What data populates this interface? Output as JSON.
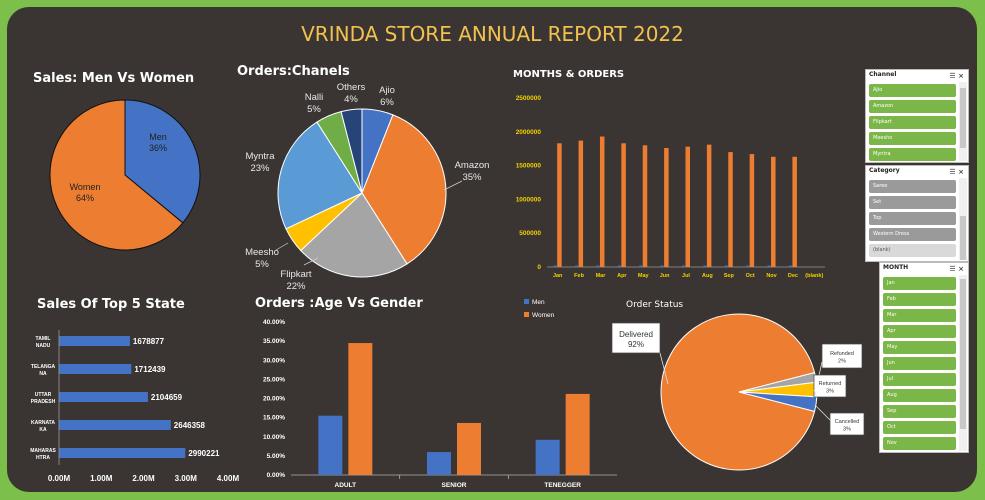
{
  "report_title": "VRINDA STORE ANNUAL REPORT 2022",
  "colors": {
    "blue": "#4472c4",
    "orange": "#ed7d31",
    "gray": "#a5a5a5",
    "yellow": "#ffc000",
    "lightblue": "#5b9bd5",
    "green": "#70ad47",
    "navy": "#264478",
    "gold": "#f2c14e",
    "slicer_green": "#7ab648"
  },
  "chart_data": [
    {
      "id": "gender",
      "type": "pie",
      "title": "Sales: Men Vs Women",
      "labels": [
        "Men",
        "Women"
      ],
      "values": [
        36,
        64
      ],
      "value_labels": [
        "36%",
        "64%"
      ]
    },
    {
      "id": "channels",
      "type": "pie",
      "title": "Orders:Chanels",
      "labels": [
        "Ajio",
        "Amazon",
        "Flipkart",
        "Meesho",
        "Myntra",
        "Nalli",
        "Others"
      ],
      "values": [
        6,
        35,
        22,
        5,
        23,
        5,
        4
      ],
      "value_labels": [
        "6%",
        "35%",
        "22%",
        "5%",
        "23%",
        "5%",
        "4%"
      ]
    },
    {
      "id": "months",
      "type": "bar",
      "title": "MONTHS & ORDERS",
      "categories": [
        "Jan",
        "Feb",
        "Mar",
        "Apr",
        "May",
        "Jun",
        "Jul",
        "Aug",
        "Sep",
        "Oct",
        "Nov",
        "Dec",
        "(blank)"
      ],
      "values": [
        1830000,
        1870000,
        1930000,
        1830000,
        1800000,
        1760000,
        1780000,
        1810000,
        1700000,
        1670000,
        1630000,
        1630000,
        0
      ],
      "ylim": [
        0,
        2500000
      ],
      "yticks": [
        "0",
        "500000",
        "1000000",
        "1500000",
        "2000000",
        "2500000"
      ]
    },
    {
      "id": "states",
      "type": "bar",
      "orientation": "horizontal",
      "title": "Sales Of Top 5 State",
      "categories": [
        "TAMIL NADU",
        "TELANGA NA",
        "UTTAR PRADESH",
        "KARNATA KA",
        "MAHARAS HTRA"
      ],
      "category_lines": [
        [
          "TAMIL",
          "NADU"
        ],
        [
          "TELANGA",
          "NA"
        ],
        [
          "UTTAR",
          "PRADESH"
        ],
        [
          "KARNATA",
          "KA"
        ],
        [
          "MAHARAS",
          "HTRA"
        ]
      ],
      "values": [
        1678877,
        1712439,
        2104659,
        2646358,
        2990221
      ],
      "value_labels": [
        "1678877",
        "1712439",
        "2104659",
        "2646358",
        "2990221"
      ],
      "xlim": [
        0,
        4000000
      ],
      "xticks": [
        "0.00M",
        "1.00M",
        "2.00M",
        "3.00M",
        "4.00M"
      ]
    },
    {
      "id": "age_gender",
      "type": "bar",
      "title": "Orders :Age Vs Gender",
      "categories": [
        "ADULT",
        "SENIOR",
        "TENEGGER"
      ],
      "series": [
        {
          "name": "Men",
          "values": [
            15.5,
            6.0,
            9.2
          ]
        },
        {
          "name": "Women",
          "values": [
            34.5,
            13.6,
            21.2
          ]
        }
      ],
      "ylim": [
        0,
        40
      ],
      "yticks": [
        "0.00%",
        "5.00%",
        "10.00%",
        "15.00%",
        "20.00%",
        "25.00%",
        "30.00%",
        "35.00%",
        "40.00%"
      ]
    },
    {
      "id": "status",
      "type": "pie",
      "title": "Order Status",
      "labels": [
        "Delivered",
        "Refunded",
        "Returned",
        "Cancelled"
      ],
      "values": [
        92,
        2,
        3,
        3
      ],
      "value_labels": [
        "92%",
        "2%",
        "3%",
        "3%"
      ]
    }
  ],
  "slicers": [
    {
      "title": "Channel",
      "items": [
        {
          "label": "Ajio",
          "style": "green"
        },
        {
          "label": "Amazon",
          "style": "green"
        },
        {
          "label": "Flipkart",
          "style": "green"
        },
        {
          "label": "Meesho",
          "style": "green"
        },
        {
          "label": "Myntra",
          "style": "green"
        }
      ]
    },
    {
      "title": "Category",
      "items": [
        {
          "label": "Saree",
          "style": "gray"
        },
        {
          "label": "Set",
          "style": "gray"
        },
        {
          "label": "Top",
          "style": "gray"
        },
        {
          "label": "Western Dress",
          "style": "gray"
        },
        {
          "label": "(blank)",
          "style": "lightgray"
        }
      ]
    },
    {
      "title": "MONTH",
      "items": [
        {
          "label": "Jan",
          "style": "green"
        },
        {
          "label": "Feb",
          "style": "green"
        },
        {
          "label": "Mar",
          "style": "green"
        },
        {
          "label": "Apr",
          "style": "green"
        },
        {
          "label": "May",
          "style": "green"
        },
        {
          "label": "Jun",
          "style": "green"
        },
        {
          "label": "Jul",
          "style": "green"
        },
        {
          "label": "Aug",
          "style": "green"
        },
        {
          "label": "Sep",
          "style": "green"
        },
        {
          "label": "Oct",
          "style": "green"
        },
        {
          "label": "Nov",
          "style": "green"
        }
      ]
    }
  ]
}
